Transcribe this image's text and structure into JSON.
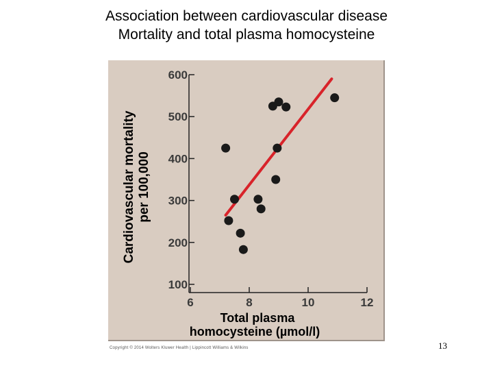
{
  "slide": {
    "title_line1": "Association between cardiovascular disease",
    "title_line2": "Mortality and total plasma homocysteine",
    "copyright": "Copyright © 2014 Wolters Kluwer Health | Lippincott Williams & Wilkins",
    "page_number": "13"
  },
  "colors": {
    "panel_bg": "#d9ccc1",
    "trend_line": "#d8232a",
    "points": "#1a1a1a",
    "axis": "#222222"
  },
  "chart_data": {
    "type": "scatter",
    "title": "",
    "xlabel_line1": "Total plasma",
    "xlabel_line2": "homocysteine (µmol/l)",
    "ylabel_line1": "Cardiovascular mortality",
    "ylabel_line2": "per 100,000",
    "xlim": [
      6,
      12
    ],
    "ylim": [
      100,
      600
    ],
    "x_ticks": [
      6,
      8,
      10,
      12
    ],
    "y_ticks": [
      100,
      200,
      300,
      400,
      500,
      600
    ],
    "grid": false,
    "points": [
      {
        "x": 7.2,
        "y": 425
      },
      {
        "x": 7.3,
        "y": 252
      },
      {
        "x": 7.5,
        "y": 303
      },
      {
        "x": 7.7,
        "y": 222
      },
      {
        "x": 7.8,
        "y": 183
      },
      {
        "x": 8.3,
        "y": 303
      },
      {
        "x": 8.4,
        "y": 280
      },
      {
        "x": 8.8,
        "y": 525
      },
      {
        "x": 8.9,
        "y": 350
      },
      {
        "x": 8.95,
        "y": 425
      },
      {
        "x": 9.0,
        "y": 535
      },
      {
        "x": 9.25,
        "y": 523
      },
      {
        "x": 10.9,
        "y": 545
      }
    ],
    "trend_line": {
      "x1": 7.2,
      "y1": 265,
      "x2": 10.8,
      "y2": 590
    }
  }
}
